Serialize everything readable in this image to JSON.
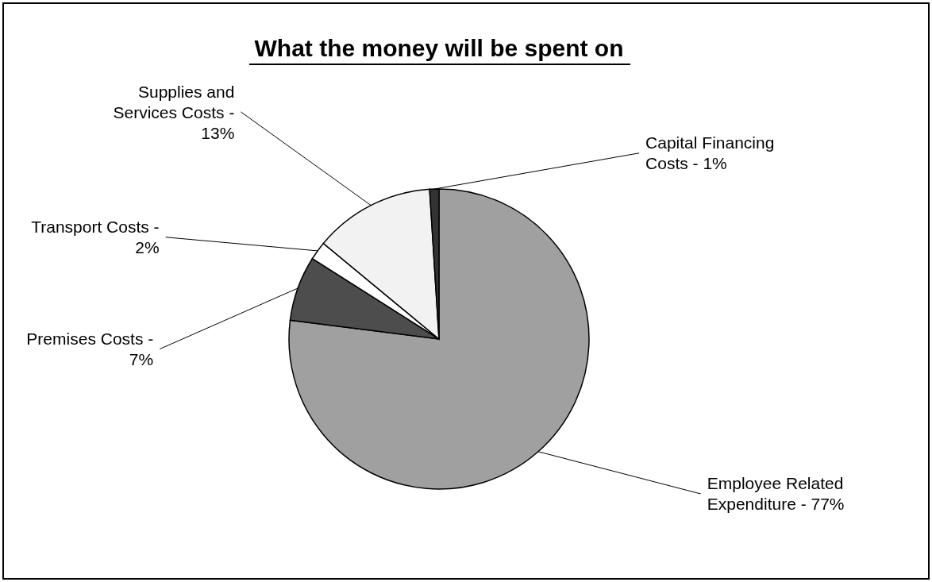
{
  "chart_data": {
    "type": "pie",
    "title": "What the money will be spent on",
    "categories": [
      "Employee Related\nExpenditure - 77%",
      "Premises Costs -\n7%",
      "Transport Costs -\n2%",
      "Supplies and\nServices Costs -\n13%",
      "Capital Financing\nCosts - 1%"
    ],
    "values": [
      77,
      7,
      2,
      13,
      1
    ],
    "colors": [
      "#a0a0a0",
      "#4d4d4d",
      "#ffffff",
      "#f2f2f2",
      "#333333"
    ]
  }
}
